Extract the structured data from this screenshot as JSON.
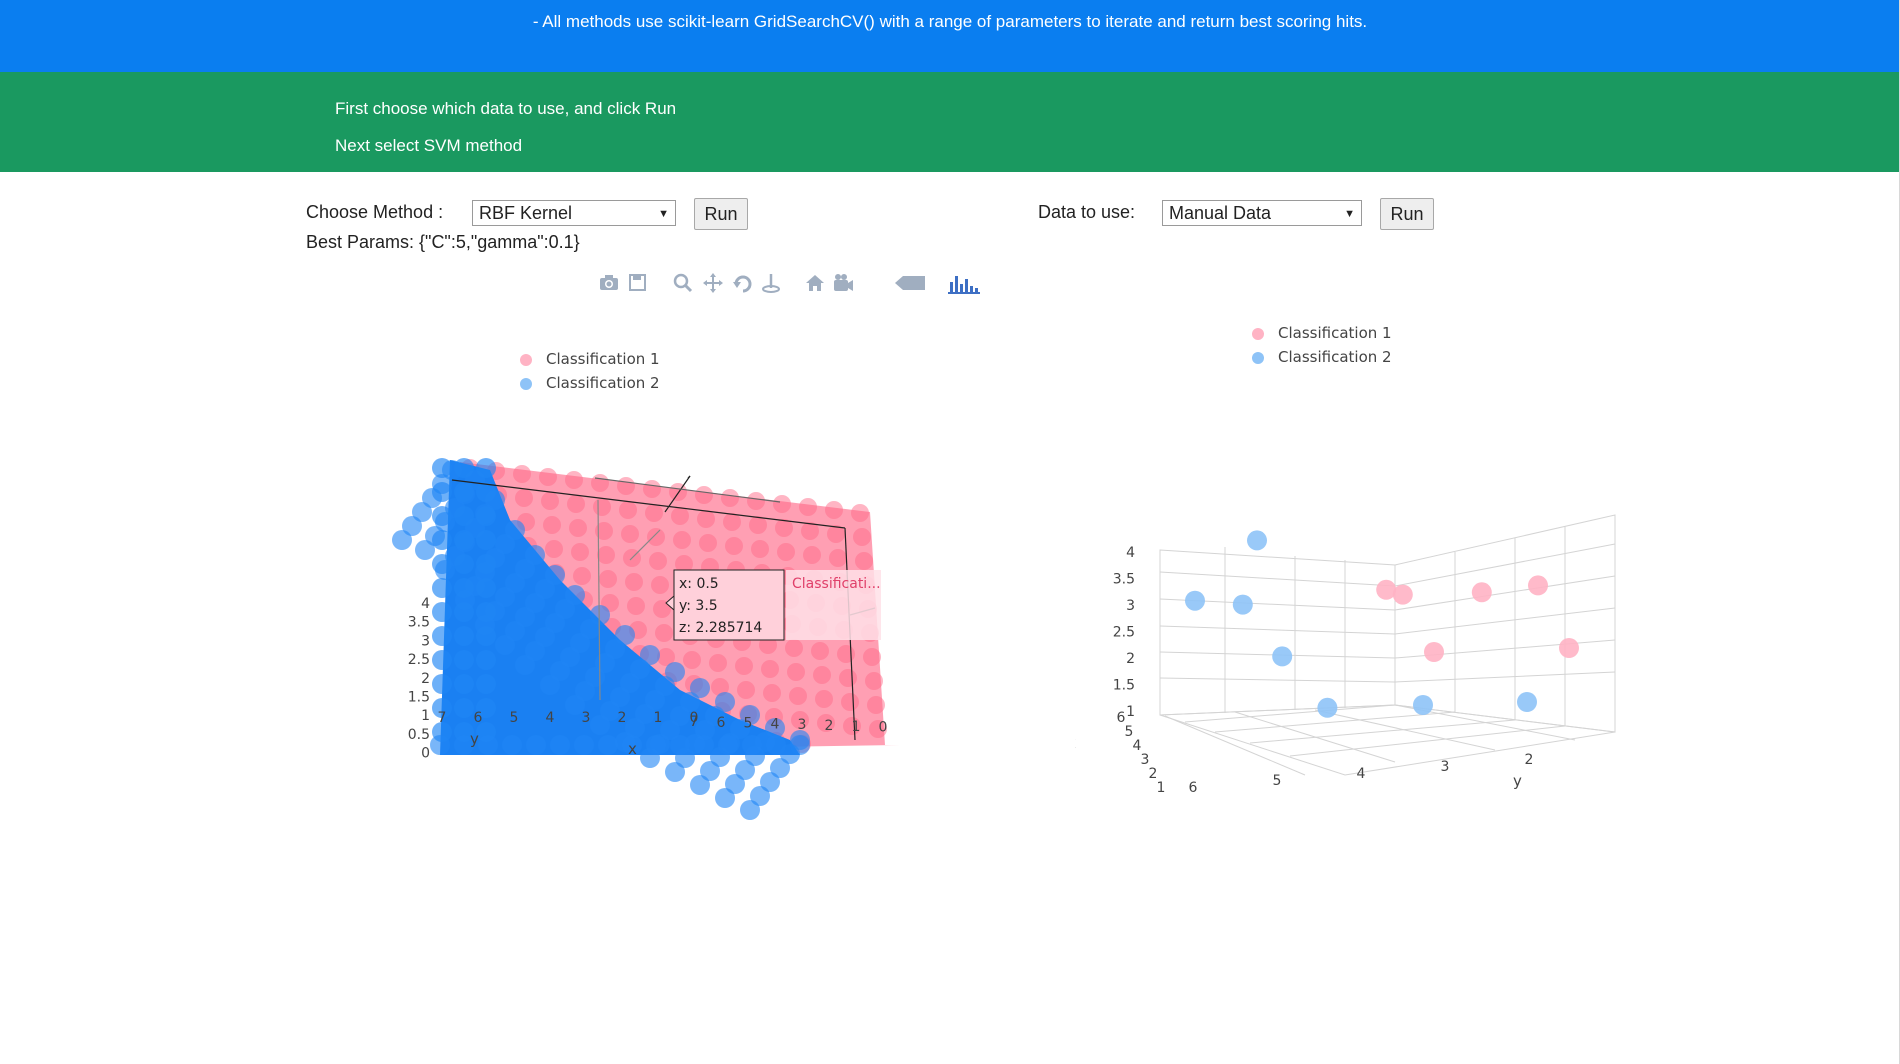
{
  "header": {
    "note": "- All methods use scikit-learn GridSearchCV() with a range of parameters to iterate and return best scoring hits."
  },
  "instructions": {
    "line1": "First choose which data to use, and click Run",
    "line2": "Next select SVM method"
  },
  "method_control": {
    "label": "Choose Method :",
    "selected": "RBF Kernel",
    "run_label": "Run"
  },
  "data_control": {
    "label": "Data to use:",
    "selected": "Manual Data",
    "run_label": "Run"
  },
  "best_params": "Best Params: {\"C\":5,\"gamma\":0.1}",
  "modebar": {
    "icons": [
      "camera-icon",
      "save-icon",
      "zoom-icon",
      "pan-icon",
      "orbit-rotation-icon",
      "turntable-rotation-icon",
      "reset-camera-icon",
      "camera-last-save-icon",
      "hover-closest-icon",
      "plotly-logo-icon"
    ]
  },
  "colors": {
    "blue_banner": "#0a7ef0",
    "green_banner": "#1a9960",
    "class1": "#ff6b8a",
    "class2": "#1f85f5",
    "class1_light": "#ffb3c4",
    "class2_light": "#8ec3f7"
  },
  "chart_data": [
    {
      "type": "scatter",
      "legend": [
        "Classification 1",
        "Classification 2"
      ],
      "axes": {
        "z_label": "z",
        "y_label": "y",
        "x_label": "x",
        "z_ticks": [
          "4",
          "3.5",
          "3",
          "2.5",
          "2",
          "1.5",
          "1",
          "0.5",
          "0"
        ],
        "y_ticks": [
          "7",
          "6",
          "5",
          "4",
          "3",
          "2",
          "1",
          "0"
        ],
        "x_ticks": [
          "7",
          "6",
          "5",
          "4",
          "3",
          "2",
          "1",
          "0"
        ]
      },
      "hover": {
        "x": "x: 0.5",
        "y": "y: 3.5",
        "z": "z: 2.285714",
        "series": "Classificati..."
      }
    },
    {
      "type": "scatter",
      "legend": [
        "Classification 1",
        "Classification 2"
      ],
      "axes": {
        "z_label": "z",
        "x_label": "x",
        "y_label": "y",
        "z_ticks": [
          "4",
          "3.5",
          "3",
          "2.5",
          "2",
          "1.5",
          "1"
        ],
        "x_ticks": [
          "6",
          "5",
          "4",
          "3",
          "2",
          "1"
        ],
        "y_ticks": [
          "6",
          "5",
          "4",
          "3",
          "2"
        ]
      },
      "points": [
        {
          "class": "Classification 2",
          "x": 2,
          "y": 6,
          "z": 4.2
        },
        {
          "class": "Classification 2",
          "x": 1,
          "y": 6,
          "z": 3.1
        },
        {
          "class": "Classification 2",
          "x": 1.5,
          "y": 5.6,
          "z": 3.0
        },
        {
          "class": "Classification 2",
          "x": 2,
          "y": 5.4,
          "z": 2.0
        },
        {
          "class": "Classification 2",
          "x": 3,
          "y": 5.8,
          "z": 1.0
        },
        {
          "class": "Classification 2",
          "x": 4,
          "y": 5,
          "z": 1.0
        },
        {
          "class": "Classification 2",
          "x": 5,
          "y": 4,
          "z": 1.0
        },
        {
          "class": "Classification 1",
          "x": 3,
          "y": 4.4,
          "z": 3.2
        },
        {
          "class": "Classification 1",
          "x": 3.2,
          "y": 4.3,
          "z": 3.1
        },
        {
          "class": "Classification 1",
          "x": 4,
          "y": 3.6,
          "z": 3.1
        },
        {
          "class": "Classification 1",
          "x": 4.5,
          "y": 3,
          "z": 3.2
        },
        {
          "class": "Classification 1",
          "x": 3.5,
          "y": 4,
          "z": 2.0
        },
        {
          "class": "Classification 1",
          "x": 5,
          "y": 3,
          "z": 2.0
        },
        {
          "class": "Classification 1",
          "x": 6,
          "y": 2,
          "z": 1.0
        }
      ]
    }
  ]
}
